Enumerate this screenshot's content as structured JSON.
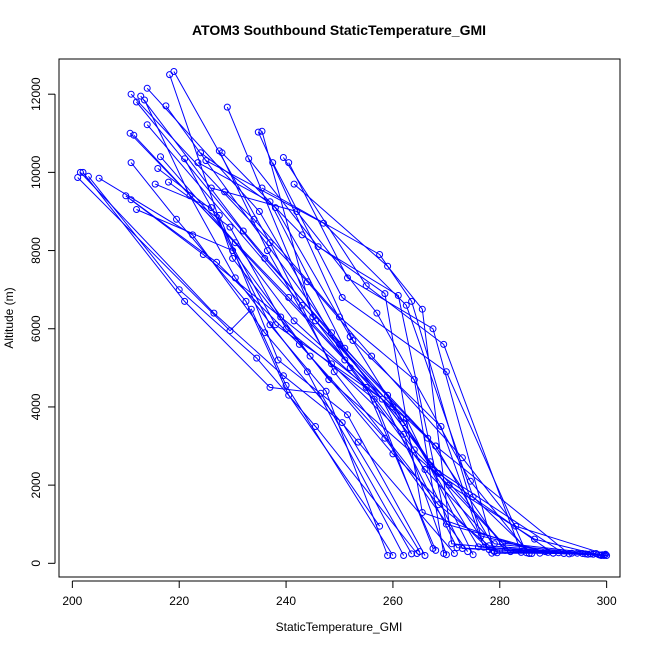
{
  "chart_data": {
    "type": "scatter",
    "title": "ATOM3 Southbound StaticTemperature_GMI",
    "xlabel": "StaticTemperature_GMI",
    "ylabel": "Altitude (m)",
    "xlim": [
      197.5,
      302.5
    ],
    "ylim": [
      -350,
      12900
    ],
    "x_ticks": [
      200,
      220,
      240,
      260,
      280,
      300
    ],
    "y_ticks": [
      0,
      2000,
      4000,
      6000,
      8000,
      10000,
      12000
    ],
    "grid": false,
    "legend": "none",
    "color": "#0000ff",
    "marker": "open-circle",
    "connect_points": true,
    "series": [
      {
        "x": [
          299.5,
          278.0,
          268.5,
          249.0,
          237.0,
          219.0
        ],
        "y": [
          200,
          450,
          1500,
          4900,
          8200,
          12580
        ]
      },
      {
        "x": [
          299.0,
          286.5,
          270.5,
          248.0,
          230.0,
          218.2
        ],
        "y": [
          200,
          620,
          2000,
          4700,
          7800,
          12500
        ]
      },
      {
        "x": [
          298.5,
          279.0,
          266.0,
          252.0,
          235.0,
          214.0
        ],
        "y": [
          220,
          500,
          2400,
          5000,
          9000,
          12150
        ]
      },
      {
        "x": [
          298.0,
          280.5,
          267.0,
          250.0,
          232.0,
          212.8
        ],
        "y": [
          250,
          520,
          2600,
          5600,
          8500,
          11950
        ]
      },
      {
        "x": [
          299.8,
          283.0,
          273.0,
          256.0,
          244.0,
          211.0
        ],
        "y": [
          230,
          950,
          2700,
          5300,
          7200,
          12000
        ]
      },
      {
        "x": [
          297.0,
          290.0,
          268.5,
          248.5,
          217.5
        ],
        "y": [
          240,
          260,
          2300,
          5900,
          11700
        ]
      },
      {
        "x": [
          296.5,
          276.0,
          259.0,
          236.0,
          212.0
        ],
        "y": [
          230,
          420,
          4300,
          7800,
          11800
        ]
      },
      {
        "x": [
          300.0,
          282.0,
          264.0,
          245.0,
          235.5
        ],
        "y": [
          200,
          300,
          2900,
          6300,
          11050
        ]
      },
      {
        "x": [
          299.2,
          277.0,
          269.0,
          252.5,
          234.8
        ],
        "y": [
          220,
          410,
          3500,
          5700,
          11030
        ]
      },
      {
        "x": [
          298.8,
          281.0,
          266.5,
          245.5,
          229.0
        ],
        "y": [
          210,
          330,
          3200,
          6200,
          11670
        ]
      },
      {
        "x": [
          295.5,
          273.0,
          260.0,
          243.0,
          214.0
        ],
        "y": [
          250,
          380,
          4000,
          6600,
          11220
        ]
      },
      {
        "x": [
          294.5,
          278.5,
          262.0,
          240.5,
          210.8
        ],
        "y": [
          260,
          260,
          3600,
          6800,
          11000
        ]
      },
      {
        "x": [
          293.5,
          279.5,
          268.0,
          251.0,
          211.5
        ],
        "y": [
          260,
          270,
          3000,
          5200,
          10950
        ]
      },
      {
        "x": [
          291.0,
          272.0,
          258.0,
          238.0,
          221.0
        ],
        "y": [
          270,
          400,
          4200,
          6100,
          10350
        ]
      },
      {
        "x": [
          299.6,
          285.0,
          270.0,
          250.5,
          237.5
        ],
        "y": [
          220,
          270,
          4900,
          6800,
          10250
        ]
      },
      {
        "x": [
          297.5,
          284.0,
          269.5,
          255.0,
          239.5
        ],
        "y": [
          230,
          280,
          5600,
          7100,
          10380
        ]
      },
      {
        "x": [
          296.0,
          279.0,
          267.5,
          251.5,
          240.5
        ],
        "y": [
          240,
          300,
          6000,
          7300,
          10250
        ]
      },
      {
        "x": [
          290.0,
          271.0,
          265.5,
          259.0,
          241.5
        ],
        "y": [
          260,
          500,
          6500,
          7600,
          9700
        ]
      },
      {
        "x": [
          289.0,
          276.5,
          263.5,
          257.5,
          235.5
        ],
        "y": [
          280,
          700,
          6700,
          7900,
          9600
        ]
      },
      {
        "x": [
          288.5,
          270.0,
          261.0,
          246.0,
          233.0
        ],
        "y": [
          300,
          1000,
          6850,
          8100,
          10350
        ]
      },
      {
        "x": [
          287.5,
          265.5,
          258.5,
          243.0,
          228.0
        ],
        "y": [
          260,
          1300,
          6900,
          8400,
          10500
        ]
      },
      {
        "x": [
          286.0,
          275.0,
          262.5,
          247.0,
          225.0
        ],
        "y": [
          250,
          1700,
          6600,
          8700,
          10300
        ]
      },
      {
        "x": [
          285.5,
          274.5,
          257.0,
          242.0,
          226.0
        ],
        "y": [
          250,
          2100,
          6400,
          9000,
          9600
        ]
      },
      {
        "x": [
          292.0,
          267.0,
          252.0,
          238.0,
          224.0
        ],
        "y": [
          250,
          2500,
          5800,
          9100,
          10500
        ]
      },
      {
        "x": [
          293.0,
          268.0,
          251.0,
          237.0,
          223.5
        ],
        "y": [
          240,
          3000,
          5500,
          9250,
          10250
        ]
      },
      {
        "x": [
          270.0,
          262.0,
          248.5,
          236.5,
          227.5
        ],
        "y": [
          220,
          3300,
          5100,
          8000,
          10550
        ]
      },
      {
        "x": [
          269.5,
          264.0,
          250.0,
          234.0,
          228.5
        ],
        "y": [
          250,
          4700,
          6300,
          8800,
          9500
        ]
      },
      {
        "x": [
          268.0,
          255.0,
          241.5,
          230.5,
          216.5
        ],
        "y": [
          330,
          4500,
          6200,
          8200,
          10400
        ]
      },
      {
        "x": [
          267.5,
          256.5,
          240.0,
          229.5,
          218.0
        ],
        "y": [
          380,
          4200,
          6000,
          8600,
          9750
        ]
      },
      {
        "x": [
          266.0,
          251.5,
          238.5,
          227.5,
          216.0
        ],
        "y": [
          200,
          3800,
          5200,
          8900,
          10100
        ]
      },
      {
        "x": [
          259.0,
          247.5,
          237.0,
          226.0,
          215.5
        ],
        "y": [
          200,
          4400,
          6100,
          9100,
          9700
        ]
      },
      {
        "x": [
          257.5,
          240.5,
          232.5,
          219.5,
          211.0
        ],
        "y": [
          950,
          4300,
          6700,
          8800,
          10250
        ]
      },
      {
        "x": [
          262.0,
          244.0,
          230.5,
          222.0,
          213.5
        ],
        "y": [
          200,
          4900,
          7300,
          9400,
          11850
        ]
      },
      {
        "x": [
          278.0,
          260.0,
          244.5,
          230.0,
          212.0
        ],
        "y": [
          350,
          2800,
          5300,
          8000,
          9050
        ]
      },
      {
        "x": [
          274.0,
          258.5,
          242.5,
          227.0,
          211.0
        ],
        "y": [
          300,
          3200,
          5600,
          7700,
          9300
        ]
      },
      {
        "x": [
          275.0,
          262.5,
          239.0,
          224.5,
          210.0
        ],
        "y": [
          220,
          3700,
          6300,
          7900,
          9400
        ]
      },
      {
        "x": [
          271.5,
          253.5,
          236.0,
          222.5,
          205.0
        ],
        "y": [
          250,
          3100,
          5900,
          8400,
          9850
        ]
      },
      {
        "x": [
          264.5,
          245.5,
          234.5,
          220.0,
          203.0
        ],
        "y": [
          250,
          3500,
          5250,
          7000,
          9900
        ]
      },
      {
        "x": [
          263.5,
          246.5,
          237.0,
          221.0,
          202.0
        ],
        "y": [
          240,
          4350,
          4500,
          6700,
          10000
        ]
      },
      {
        "x": [
          265.0,
          250.5,
          239.5,
          226.5,
          201.5
        ],
        "y": [
          300,
          3600,
          4800,
          6400,
          10000
        ]
      },
      {
        "x": [
          260.0,
          240.0,
          233.5,
          229.5,
          201.0
        ],
        "y": [
          200,
          4550,
          6500,
          5950,
          9870
        ]
      }
    ]
  }
}
